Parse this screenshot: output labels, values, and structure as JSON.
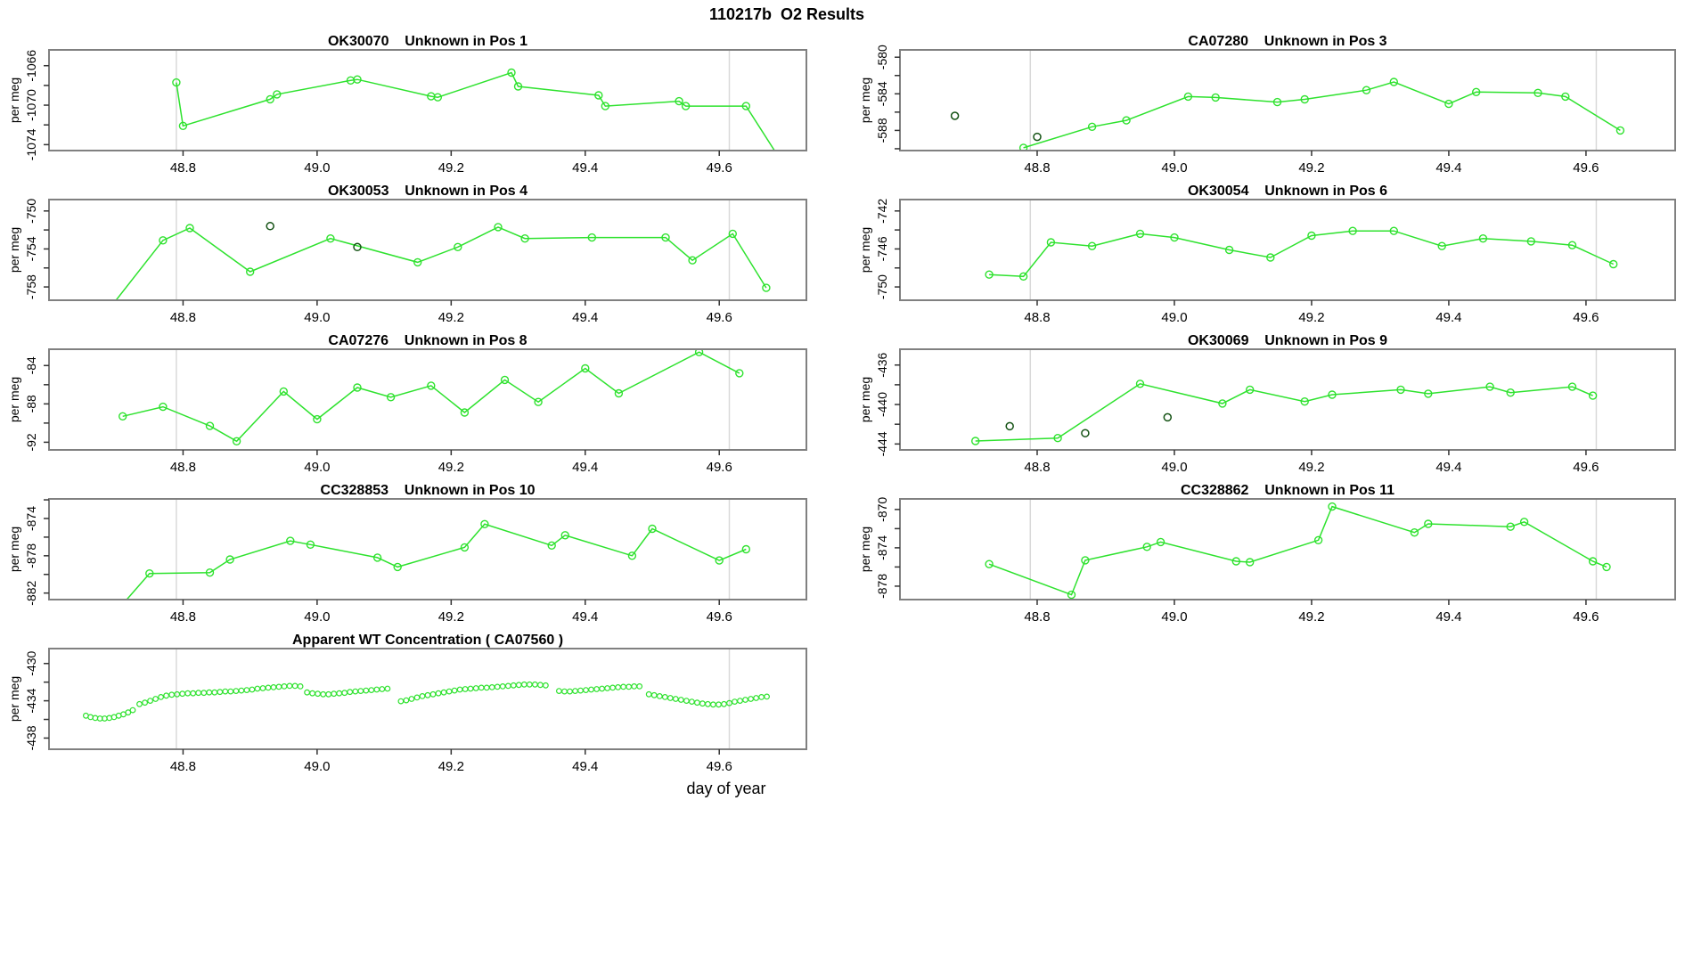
{
  "header": {
    "title": "110217b  O2 Results"
  },
  "xaxis": {
    "label": "day of year",
    "domain": [
      48.6,
      49.73
    ],
    "ticks": [
      48.8,
      49.0,
      49.2,
      49.4,
      49.6
    ],
    "gridlines": [
      48.79,
      49.615
    ]
  },
  "style": {
    "line_color": "#2ee22e",
    "flag_color": "#145214",
    "grid_color": "#d9d9d9",
    "axis_color": "#808080",
    "tick_color": "#333333",
    "text_color": "#000000"
  },
  "chart_data": [
    {
      "type": "line",
      "id": "OK30070",
      "title": "OK30070   Unknown in Pos 1",
      "ylabel": "per meg",
      "row": 0,
      "col": 0,
      "connect": true,
      "marker_r": 4,
      "yticks": [
        -1066,
        -1070,
        -1074
      ],
      "ydomain": [
        -1064.4,
        -1074.6
      ],
      "points": [
        [
          48.79,
          -1067.7
        ],
        [
          48.8,
          -1072.1
        ],
        [
          48.93,
          -1069.4
        ],
        [
          48.94,
          -1068.9
        ],
        [
          49.05,
          -1067.5
        ],
        [
          49.06,
          -1067.4
        ],
        [
          49.17,
          -1069.1
        ],
        [
          49.18,
          -1069.2
        ],
        [
          49.29,
          -1066.7
        ],
        [
          49.3,
          -1068.1
        ],
        [
          49.42,
          -1069.0
        ],
        [
          49.43,
          -1070.1
        ],
        [
          49.54,
          -1069.6
        ],
        [
          49.55,
          -1070.1
        ],
        [
          49.64,
          -1070.1
        ],
        [
          49.69,
          -1075.4
        ]
      ],
      "flagged": []
    },
    {
      "type": "line",
      "id": "CA07280",
      "title": "CA07280   Unknown in Pos 3",
      "ylabel": "per meg",
      "row": 0,
      "col": 1,
      "connect": true,
      "marker_r": 4,
      "yticks": [
        -580,
        -584,
        -588
      ],
      "ydomain": [
        -579.2,
        -590.2
      ],
      "points": [
        [
          48.78,
          -589.9
        ],
        [
          48.88,
          -587.6
        ],
        [
          48.93,
          -586.9
        ],
        [
          49.02,
          -584.3
        ],
        [
          49.06,
          -584.4
        ],
        [
          49.15,
          -584.9
        ],
        [
          49.19,
          -584.6
        ],
        [
          49.28,
          -583.6
        ],
        [
          49.32,
          -582.7
        ],
        [
          49.4,
          -585.1
        ],
        [
          49.44,
          -583.8
        ],
        [
          49.53,
          -583.9
        ],
        [
          49.57,
          -584.3
        ],
        [
          49.65,
          -588.0
        ]
      ],
      "flagged": [
        [
          48.68,
          -586.4
        ],
        [
          48.8,
          -588.7
        ]
      ]
    },
    {
      "type": "line",
      "id": "OK30053",
      "title": "OK30053   Unknown in Pos 4",
      "ylabel": "per meg",
      "row": 1,
      "col": 0,
      "connect": true,
      "marker_r": 4,
      "yticks": [
        -750,
        -754,
        -758
      ],
      "ydomain": [
        -748.8,
        -759.4
      ],
      "points": [
        [
          48.69,
          -760.3
        ],
        [
          48.77,
          -753.1
        ],
        [
          48.81,
          -751.8
        ],
        [
          48.9,
          -756.4
        ],
        [
          49.02,
          -752.9
        ],
        [
          49.15,
          -755.4
        ],
        [
          49.21,
          -753.8
        ],
        [
          49.27,
          -751.7
        ],
        [
          49.31,
          -752.9
        ],
        [
          49.41,
          -752.8
        ],
        [
          49.52,
          -752.8
        ],
        [
          49.56,
          -755.2
        ],
        [
          49.62,
          -752.4
        ],
        [
          49.67,
          -758.1
        ]
      ],
      "flagged": [
        [
          48.93,
          -751.6
        ],
        [
          49.06,
          -753.8
        ]
      ]
    },
    {
      "type": "line",
      "id": "OK30054",
      "title": "OK30054   Unknown in Pos 6",
      "ylabel": "per meg",
      "row": 1,
      "col": 1,
      "connect": true,
      "marker_r": 4,
      "yticks": [
        -742,
        -746,
        -750
      ],
      "ydomain": [
        -740.8,
        -751.4
      ],
      "points": [
        [
          48.73,
          -748.7
        ],
        [
          48.78,
          -748.9
        ],
        [
          48.82,
          -745.3
        ],
        [
          48.88,
          -745.7
        ],
        [
          48.95,
          -744.4
        ],
        [
          49.0,
          -744.8
        ],
        [
          49.08,
          -746.1
        ],
        [
          49.14,
          -746.9
        ],
        [
          49.2,
          -744.6
        ],
        [
          49.26,
          -744.1
        ],
        [
          49.32,
          -744.1
        ],
        [
          49.39,
          -745.7
        ],
        [
          49.45,
          -744.9
        ],
        [
          49.52,
          -745.2
        ],
        [
          49.58,
          -745.6
        ],
        [
          49.64,
          -747.6
        ]
      ],
      "flagged": []
    },
    {
      "type": "line",
      "id": "CA07276",
      "title": "CA07276   Unknown in Pos 8",
      "ylabel": "per meg",
      "row": 2,
      "col": 0,
      "connect": true,
      "marker_r": 4,
      "yticks": [
        -84,
        -88,
        -92
      ],
      "ydomain": [
        -82.3,
        -92.8
      ],
      "points": [
        [
          48.71,
          -89.3
        ],
        [
          48.77,
          -88.3
        ],
        [
          48.84,
          -90.3
        ],
        [
          48.88,
          -91.9
        ],
        [
          48.95,
          -86.7
        ],
        [
          49.0,
          -89.6
        ],
        [
          49.06,
          -86.3
        ],
        [
          49.11,
          -87.3
        ],
        [
          49.17,
          -86.1
        ],
        [
          49.22,
          -88.9
        ],
        [
          49.28,
          -85.5
        ],
        [
          49.33,
          -87.8
        ],
        [
          49.4,
          -84.3
        ],
        [
          49.45,
          -86.9
        ],
        [
          49.57,
          -82.6
        ],
        [
          49.63,
          -84.8
        ]
      ],
      "flagged": []
    },
    {
      "type": "line",
      "id": "OK30069",
      "title": "OK30069   Unknown in Pos 9",
      "ylabel": "per meg",
      "row": 2,
      "col": 1,
      "connect": true,
      "marker_r": 4,
      "yticks": [
        -436,
        -440,
        -444
      ],
      "ydomain": [
        -434.4,
        -444.6
      ],
      "points": [
        [
          48.71,
          -443.7
        ],
        [
          48.83,
          -443.4
        ],
        [
          48.95,
          -437.9
        ],
        [
          49.07,
          -439.9
        ],
        [
          49.11,
          -438.5
        ],
        [
          49.19,
          -439.7
        ],
        [
          49.23,
          -439.0
        ],
        [
          49.33,
          -438.5
        ],
        [
          49.37,
          -438.9
        ],
        [
          49.46,
          -438.2
        ],
        [
          49.49,
          -438.8
        ],
        [
          49.58,
          -438.2
        ],
        [
          49.61,
          -439.1
        ]
      ],
      "flagged": [
        [
          48.76,
          -442.2
        ],
        [
          48.87,
          -442.9
        ],
        [
          48.99,
          -441.3
        ]
      ]
    },
    {
      "type": "line",
      "id": "CC328853",
      "title": "CC328853   Unknown in Pos 10",
      "ylabel": "per meg",
      "row": 3,
      "col": 0,
      "connect": true,
      "marker_r": 4,
      "yticks": [
        -874,
        -878,
        -882
      ],
      "ydomain": [
        -871.9,
        -882.7
      ],
      "points": [
        [
          48.71,
          -883.2
        ],
        [
          48.75,
          -879.9
        ],
        [
          48.84,
          -879.8
        ],
        [
          48.87,
          -878.4
        ],
        [
          48.96,
          -876.4
        ],
        [
          48.99,
          -876.8
        ],
        [
          49.09,
          -878.2
        ],
        [
          49.12,
          -879.2
        ],
        [
          49.22,
          -877.1
        ],
        [
          49.25,
          -874.6
        ],
        [
          49.35,
          -876.9
        ],
        [
          49.37,
          -875.8
        ],
        [
          49.47,
          -878.0
        ],
        [
          49.5,
          -875.1
        ],
        [
          49.6,
          -878.5
        ],
        [
          49.64,
          -877.3
        ]
      ],
      "flagged": []
    },
    {
      "type": "line",
      "id": "CC328862",
      "title": "CC328862   Unknown in Pos 11",
      "ylabel": "per meg",
      "row": 3,
      "col": 1,
      "connect": true,
      "marker_r": 4,
      "yticks": [
        -870,
        -874,
        -878
      ],
      "ydomain": [
        -868.9,
        -879.4
      ],
      "points": [
        [
          48.73,
          -875.7
        ],
        [
          48.85,
          -878.9
        ],
        [
          48.87,
          -875.3
        ],
        [
          48.96,
          -873.9
        ],
        [
          48.98,
          -873.4
        ],
        [
          49.09,
          -875.4
        ],
        [
          49.11,
          -875.5
        ],
        [
          49.21,
          -873.2
        ],
        [
          49.23,
          -869.7
        ],
        [
          49.35,
          -872.4
        ],
        [
          49.37,
          -871.5
        ],
        [
          49.49,
          -871.8
        ],
        [
          49.51,
          -871.3
        ],
        [
          49.61,
          -875.4
        ],
        [
          49.63,
          -876.0
        ]
      ],
      "flagged": []
    },
    {
      "type": "scatter",
      "id": "CA07560",
      "title": "Apparent WT Concentration ( CA07560 )",
      "ylabel": "per meg",
      "row": 4,
      "col": 0,
      "connect": false,
      "marker_r": 2.8,
      "yticks": [
        -430,
        -434,
        -438
      ],
      "ydomain": [
        -428.4,
        -439.2
      ],
      "points": [
        [
          48.655,
          -435.6
        ],
        [
          48.662,
          -435.75
        ],
        [
          48.669,
          -435.85
        ],
        [
          48.676,
          -435.9
        ],
        [
          48.683,
          -435.9
        ],
        [
          48.69,
          -435.85
        ],
        [
          48.697,
          -435.75
        ],
        [
          48.704,
          -435.6
        ],
        [
          48.711,
          -435.45
        ],
        [
          48.718,
          -435.25
        ],
        [
          48.725,
          -435.0
        ],
        [
          48.735,
          -434.35
        ],
        [
          48.743,
          -434.2
        ],
        [
          48.751,
          -434.0
        ],
        [
          48.759,
          -433.8
        ],
        [
          48.767,
          -433.6
        ],
        [
          48.775,
          -433.45
        ],
        [
          48.783,
          -433.35
        ],
        [
          48.791,
          -433.3
        ],
        [
          48.799,
          -433.25
        ],
        [
          48.807,
          -433.2
        ],
        [
          48.815,
          -433.2
        ],
        [
          48.823,
          -433.15
        ],
        [
          48.831,
          -433.15
        ],
        [
          48.839,
          -433.1
        ],
        [
          48.847,
          -433.1
        ],
        [
          48.855,
          -433.05
        ],
        [
          48.863,
          -433.0
        ],
        [
          48.871,
          -433.0
        ],
        [
          48.879,
          -432.95
        ],
        [
          48.887,
          -432.9
        ],
        [
          48.895,
          -432.85
        ],
        [
          48.903,
          -432.8
        ],
        [
          48.911,
          -432.7
        ],
        [
          48.919,
          -432.65
        ],
        [
          48.927,
          -432.6
        ],
        [
          48.935,
          -432.55
        ],
        [
          48.943,
          -432.5
        ],
        [
          48.951,
          -432.45
        ],
        [
          48.959,
          -432.4
        ],
        [
          48.967,
          -432.4
        ],
        [
          48.975,
          -432.45
        ],
        [
          48.985,
          -433.1
        ],
        [
          48.993,
          -433.2
        ],
        [
          49.001,
          -433.25
        ],
        [
          49.009,
          -433.3
        ],
        [
          49.017,
          -433.3
        ],
        [
          49.025,
          -433.25
        ],
        [
          49.033,
          -433.2
        ],
        [
          49.041,
          -433.15
        ],
        [
          49.049,
          -433.05
        ],
        [
          49.057,
          -433.0
        ],
        [
          49.065,
          -432.95
        ],
        [
          49.073,
          -432.9
        ],
        [
          49.081,
          -432.85
        ],
        [
          49.089,
          -432.8
        ],
        [
          49.097,
          -432.75
        ],
        [
          49.105,
          -432.7
        ],
        [
          49.125,
          -434.05
        ],
        [
          49.133,
          -433.95
        ],
        [
          49.141,
          -433.8
        ],
        [
          49.149,
          -433.65
        ],
        [
          49.157,
          -433.5
        ],
        [
          49.165,
          -433.4
        ],
        [
          49.173,
          -433.3
        ],
        [
          49.181,
          -433.2
        ],
        [
          49.189,
          -433.1
        ],
        [
          49.197,
          -433.0
        ],
        [
          49.205,
          -432.9
        ],
        [
          49.213,
          -432.8
        ],
        [
          49.221,
          -432.75
        ],
        [
          49.229,
          -432.7
        ],
        [
          49.237,
          -432.65
        ],
        [
          49.245,
          -432.6
        ],
        [
          49.253,
          -432.6
        ],
        [
          49.261,
          -432.55
        ],
        [
          49.269,
          -432.5
        ],
        [
          49.277,
          -432.45
        ],
        [
          49.285,
          -432.4
        ],
        [
          49.293,
          -432.35
        ],
        [
          49.301,
          -432.3
        ],
        [
          49.309,
          -432.25
        ],
        [
          49.317,
          -432.25
        ],
        [
          49.325,
          -432.25
        ],
        [
          49.333,
          -432.3
        ],
        [
          49.341,
          -432.35
        ],
        [
          49.361,
          -432.95
        ],
        [
          49.369,
          -433.0
        ],
        [
          49.377,
          -433.0
        ],
        [
          49.385,
          -432.95
        ],
        [
          49.393,
          -432.9
        ],
        [
          49.401,
          -432.85
        ],
        [
          49.409,
          -432.8
        ],
        [
          49.417,
          -432.75
        ],
        [
          49.425,
          -432.7
        ],
        [
          49.433,
          -432.65
        ],
        [
          49.441,
          -432.6
        ],
        [
          49.449,
          -432.55
        ],
        [
          49.457,
          -432.5
        ],
        [
          49.465,
          -432.5
        ],
        [
          49.473,
          -432.45
        ],
        [
          49.481,
          -432.45
        ],
        [
          49.495,
          -433.3
        ],
        [
          49.503,
          -433.4
        ],
        [
          49.511,
          -433.5
        ],
        [
          49.519,
          -433.6
        ],
        [
          49.527,
          -433.7
        ],
        [
          49.535,
          -433.8
        ],
        [
          49.543,
          -433.9
        ],
        [
          49.551,
          -434.0
        ],
        [
          49.559,
          -434.1
        ],
        [
          49.567,
          -434.2
        ],
        [
          49.575,
          -434.3
        ],
        [
          49.583,
          -434.35
        ],
        [
          49.591,
          -434.4
        ],
        [
          49.599,
          -434.4
        ],
        [
          49.607,
          -434.35
        ],
        [
          49.615,
          -434.25
        ],
        [
          49.623,
          -434.1
        ],
        [
          49.631,
          -434.0
        ],
        [
          49.639,
          -433.9
        ],
        [
          49.647,
          -433.8
        ],
        [
          49.655,
          -433.7
        ],
        [
          49.663,
          -433.6
        ],
        [
          49.671,
          -433.55
        ]
      ],
      "flagged": []
    }
  ]
}
